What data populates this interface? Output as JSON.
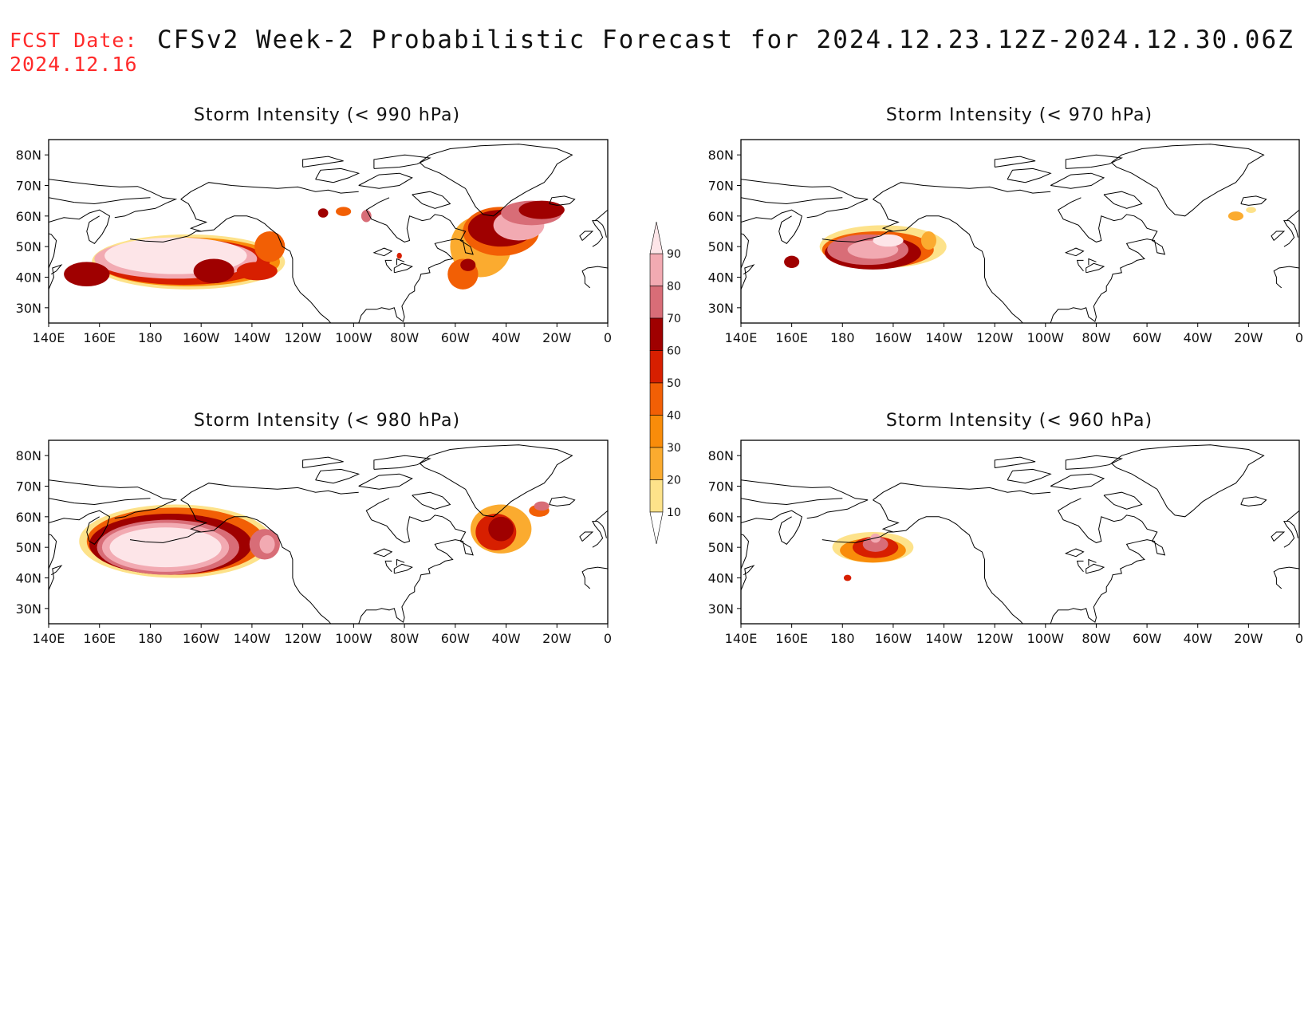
{
  "header": {
    "fcst_label": "FCST Date:",
    "fcst_date": "2024.12.16",
    "title": "CFSv2 Week-2 Probabilistic Forecast for 2024.12.23.12Z-2024.12.30.06Z"
  },
  "colorbar": {
    "levels": [
      "10",
      "20",
      "30",
      "40",
      "50",
      "60",
      "70",
      "80",
      "90"
    ],
    "colors": [
      "#fff2bf",
      "#fde28a",
      "#fbab2f",
      "#f98c0a",
      "#f25f05",
      "#d71f00",
      "#9f0000",
      "#d86d77",
      "#f2aab2",
      "#fde5e8"
    ]
  },
  "axes": {
    "lat_ticks": [
      "80N",
      "70N",
      "60N",
      "50N",
      "40N",
      "30N"
    ],
    "lon_ticks": [
      "140E",
      "160E",
      "180",
      "160W",
      "140W",
      "120W",
      "100W",
      "80W",
      "60W",
      "40W",
      "20W",
      "0"
    ]
  },
  "panels": [
    {
      "title": "Storm Intensity (< 990 hPa)"
    },
    {
      "title": "Storm Intensity (< 970 hPa)"
    },
    {
      "title": "Storm Intensity (< 980 hPa)"
    },
    {
      "title": "Storm Intensity (< 960 hPa)"
    }
  ]
}
